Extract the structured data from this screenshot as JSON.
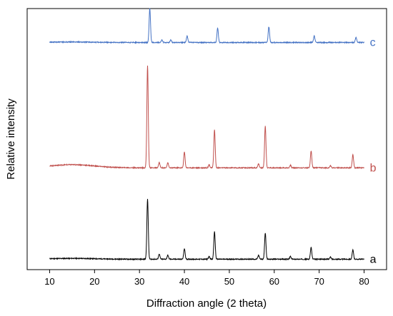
{
  "chart_data": {
    "type": "line",
    "title": "",
    "xlabel": "Diffraction angle (2 theta)",
    "ylabel": "Relative intensity",
    "xlim": [
      5,
      85
    ],
    "ylim": [
      0,
      100
    ],
    "x_ticks": [
      10,
      20,
      30,
      40,
      50,
      60,
      70,
      80
    ],
    "x_tick_labels": [
      "10",
      "20",
      "30",
      "40",
      "50",
      "60",
      "70",
      "80"
    ],
    "y_ticks_shown": false,
    "grid": false,
    "series": [
      {
        "name": "a",
        "color": "#000000",
        "offset": 4,
        "x_range": [
          10,
          80
        ],
        "broad_hump": 0.3,
        "peaks": [
          {
            "x": 31.8,
            "h": 23
          },
          {
            "x": 34.4,
            "h": 2
          },
          {
            "x": 36.3,
            "h": 1.5
          },
          {
            "x": 40.0,
            "h": 4
          },
          {
            "x": 45.5,
            "h": 1
          },
          {
            "x": 46.7,
            "h": 10.5
          },
          {
            "x": 56.5,
            "h": 1.5
          },
          {
            "x": 58.0,
            "h": 10
          },
          {
            "x": 63.6,
            "h": 1
          },
          {
            "x": 68.2,
            "h": 4.5
          },
          {
            "x": 72.5,
            "h": 0.8
          },
          {
            "x": 77.5,
            "h": 3.5
          }
        ]
      },
      {
        "name": "b",
        "color": "#c0504d",
        "offset": 39,
        "x_range": [
          10,
          80
        ],
        "broad_hump": 1.2,
        "peaks": [
          {
            "x": 31.8,
            "h": 39
          },
          {
            "x": 34.4,
            "h": 2
          },
          {
            "x": 36.3,
            "h": 2
          },
          {
            "x": 40.0,
            "h": 6
          },
          {
            "x": 45.5,
            "h": 1.2
          },
          {
            "x": 46.7,
            "h": 14.5
          },
          {
            "x": 56.5,
            "h": 1.5
          },
          {
            "x": 58.0,
            "h": 16
          },
          {
            "x": 63.6,
            "h": 1
          },
          {
            "x": 68.2,
            "h": 6.5
          },
          {
            "x": 72.5,
            "h": 0.8
          },
          {
            "x": 77.5,
            "h": 5
          }
        ]
      },
      {
        "name": "c",
        "color": "#4472c4",
        "offset": 87,
        "x_range": [
          10,
          80
        ],
        "broad_hump": 0.2,
        "peaks": [
          {
            "x": 32.3,
            "h": 13
          },
          {
            "x": 35.0,
            "h": 1
          },
          {
            "x": 37.0,
            "h": 1
          },
          {
            "x": 40.6,
            "h": 2.5
          },
          {
            "x": 47.4,
            "h": 5.5
          },
          {
            "x": 58.8,
            "h": 6
          },
          {
            "x": 68.9,
            "h": 2.5
          },
          {
            "x": 78.2,
            "h": 2
          }
        ]
      }
    ]
  }
}
